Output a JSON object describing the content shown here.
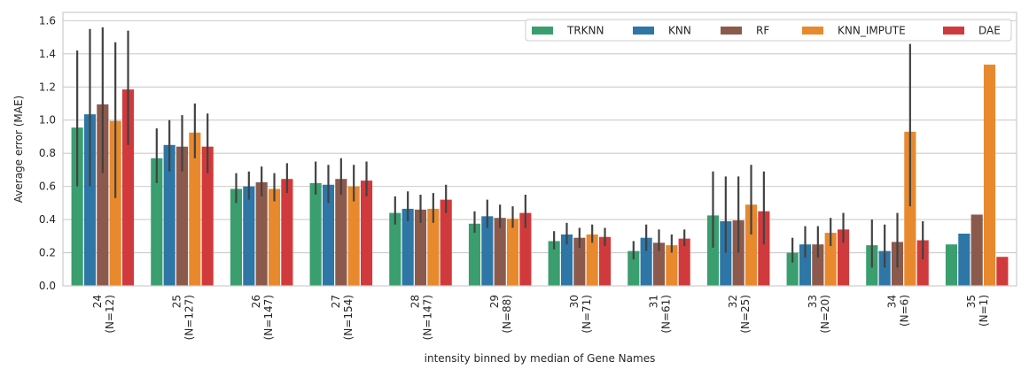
{
  "chart_data": {
    "type": "bar",
    "title": "",
    "xlabel": "intensity binned by median of Gene Names",
    "ylabel": "Average error (MAE)",
    "ylim": [
      0,
      1.65
    ],
    "yticks": [
      "0.0",
      "0.2",
      "0.4",
      "0.6",
      "0.8",
      "1.0",
      "1.2",
      "1.4",
      "1.6"
    ],
    "categories": [
      [
        "24",
        "(N=12)"
      ],
      [
        "25",
        "(N=127)"
      ],
      [
        "26",
        "(N=147)"
      ],
      [
        "27",
        "(N=154)"
      ],
      [
        "28",
        "(N=147)"
      ],
      [
        "29",
        "(N=88)"
      ],
      [
        "30",
        "(N=71)"
      ],
      [
        "31",
        "(N=61)"
      ],
      [
        "32",
        "(N=25)"
      ],
      [
        "33",
        "(N=20)"
      ],
      [
        "34",
        "(N=6)"
      ],
      [
        "35",
        "(N=1)"
      ]
    ],
    "grid": true,
    "legend_position": "top-right",
    "series": [
      {
        "name": "TRKNN",
        "color": "#3a9e6f",
        "values": [
          0.955,
          0.77,
          0.585,
          0.62,
          0.44,
          0.375,
          0.27,
          0.21,
          0.425,
          0.2,
          0.245,
          0.25
        ],
        "err_low": [
          0.6,
          0.62,
          0.5,
          0.55,
          0.37,
          0.32,
          0.22,
          0.16,
          0.23,
          0.14,
          0.11,
          null
        ],
        "err_high": [
          1.42,
          0.95,
          0.68,
          0.75,
          0.54,
          0.45,
          0.33,
          0.27,
          0.69,
          0.29,
          0.4,
          null
        ]
      },
      {
        "name": "KNN",
        "color": "#2e76a6",
        "values": [
          1.035,
          0.85,
          0.6,
          0.61,
          0.465,
          0.42,
          0.31,
          0.29,
          0.39,
          0.25,
          0.21,
          0.315
        ],
        "err_low": [
          0.6,
          0.69,
          0.52,
          0.5,
          0.39,
          0.35,
          0.25,
          0.21,
          0.2,
          0.17,
          0.11,
          null
        ],
        "err_high": [
          1.55,
          1.0,
          0.69,
          0.73,
          0.57,
          0.52,
          0.38,
          0.37,
          0.66,
          0.36,
          0.37,
          null
        ]
      },
      {
        "name": "RF",
        "color": "#8c5a4d",
        "values": [
          1.095,
          0.84,
          0.625,
          0.645,
          0.46,
          0.41,
          0.29,
          0.26,
          0.395,
          0.25,
          0.265,
          0.43
        ],
        "err_low": [
          0.68,
          0.69,
          0.54,
          0.55,
          0.38,
          0.35,
          0.23,
          0.21,
          0.2,
          0.17,
          0.11,
          null
        ],
        "err_high": [
          1.56,
          1.03,
          0.72,
          0.77,
          0.55,
          0.49,
          0.35,
          0.34,
          0.66,
          0.36,
          0.44,
          null
        ]
      },
      {
        "name": "KNN_IMPUTE",
        "color": "#e8892e",
        "values": [
          0.995,
          0.925,
          0.585,
          0.6,
          0.465,
          0.405,
          0.31,
          0.245,
          0.49,
          0.32,
          0.93,
          1.335
        ],
        "err_low": [
          0.53,
          0.77,
          0.51,
          0.51,
          0.38,
          0.35,
          0.26,
          0.2,
          0.31,
          0.24,
          0.48,
          null
        ],
        "err_high": [
          1.47,
          1.1,
          0.68,
          0.73,
          0.56,
          0.48,
          0.37,
          0.31,
          0.73,
          0.41,
          1.46,
          null
        ]
      },
      {
        "name": "DAE",
        "color": "#d13a3c",
        "values": [
          1.185,
          0.84,
          0.645,
          0.635,
          0.52,
          0.44,
          0.295,
          0.285,
          0.45,
          0.34,
          0.275,
          0.175
        ],
        "err_low": [
          0.85,
          0.68,
          0.56,
          0.54,
          0.44,
          0.35,
          0.24,
          0.24,
          0.25,
          0.26,
          0.16,
          null
        ],
        "err_high": [
          1.54,
          1.04,
          0.74,
          0.75,
          0.61,
          0.55,
          0.35,
          0.34,
          0.69,
          0.44,
          0.39,
          null
        ]
      }
    ]
  }
}
